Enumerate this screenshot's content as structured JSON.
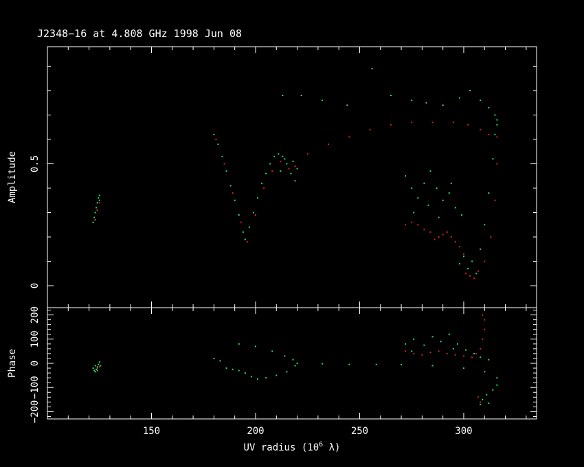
{
  "title": "J2348−16 at 4.808 GHz 1998 Jun 08",
  "chart_data": [
    {
      "type": "scatter",
      "panel": "amplitude",
      "xlabel": "UV radius  (10^6 λ)",
      "ylabel": "Amplitude",
      "xlim": [
        100,
        335
      ],
      "ylim": [
        -0.09,
        0.98
      ],
      "x_ticks": [
        150,
        200,
        250,
        300
      ],
      "y_ticks": [
        0,
        0.5
      ],
      "y_tick_labels": [
        "0",
        "0.5"
      ],
      "colors": {
        "green": "#22e36a",
        "red": "#e02020"
      },
      "series": [
        {
          "color": "green",
          "points": [
            [
              122,
              0.26
            ],
            [
              122.5,
              0.28
            ],
            [
              123,
              0.3
            ],
            [
              123.5,
              0.32
            ],
            [
              124,
              0.34
            ],
            [
              124.5,
              0.36
            ],
            [
              125,
              0.37
            ],
            [
              123,
              0.27
            ],
            [
              124,
              0.31
            ],
            [
              125,
              0.35
            ],
            [
              180,
              0.62
            ],
            [
              182,
              0.58
            ],
            [
              184,
              0.53
            ],
            [
              186,
              0.47
            ],
            [
              188,
              0.41
            ],
            [
              190,
              0.35
            ],
            [
              192,
              0.29
            ],
            [
              194,
              0.22
            ],
            [
              195,
              0.19
            ],
            [
              197,
              0.24
            ],
            [
              199,
              0.3
            ],
            [
              201,
              0.36
            ],
            [
              203,
              0.42
            ],
            [
              205,
              0.46
            ],
            [
              207,
              0.5
            ],
            [
              209,
              0.53
            ],
            [
              211,
              0.54
            ],
            [
              213,
              0.53
            ],
            [
              215,
              0.5
            ],
            [
              217,
              0.46
            ],
            [
              219,
              0.43
            ],
            [
              220,
              0.48
            ],
            [
              218,
              0.51
            ],
            [
              214,
              0.52
            ],
            [
              212,
              0.47
            ],
            [
              213,
              0.78
            ],
            [
              222,
              0.78
            ],
            [
              232,
              0.76
            ],
            [
              244,
              0.74
            ],
            [
              256,
              0.89
            ],
            [
              265,
              0.78
            ],
            [
              275,
              0.76
            ],
            [
              282,
              0.75
            ],
            [
              290,
              0.74
            ],
            [
              298,
              0.77
            ],
            [
              303,
              0.8
            ],
            [
              308,
              0.76
            ],
            [
              312,
              0.73
            ],
            [
              315,
              0.7
            ],
            [
              316,
              0.66
            ],
            [
              272,
              0.45
            ],
            [
              275,
              0.4
            ],
            [
              278,
              0.36
            ],
            [
              281,
              0.42
            ],
            [
              284,
              0.47
            ],
            [
              287,
              0.4
            ],
            [
              290,
              0.35
            ],
            [
              293,
              0.38
            ],
            [
              296,
              0.32
            ],
            [
              299,
              0.29
            ],
            [
              276,
              0.3
            ],
            [
              283,
              0.33
            ],
            [
              288,
              0.28
            ],
            [
              294,
              0.42
            ],
            [
              298,
              0.09
            ],
            [
              300,
              0.12
            ],
            [
              302,
              0.07
            ],
            [
              304,
              0.1
            ],
            [
              306,
              0.05
            ],
            [
              308,
              0.15
            ],
            [
              310,
              0.25
            ],
            [
              312,
              0.38
            ],
            [
              314,
              0.52
            ],
            [
              315,
              0.62
            ],
            [
              316,
              0.68
            ]
          ]
        },
        {
          "color": "red",
          "points": [
            [
              123,
              0.27
            ],
            [
              124,
              0.31
            ],
            [
              125,
              0.34
            ],
            [
              181,
              0.6
            ],
            [
              185,
              0.5
            ],
            [
              189,
              0.38
            ],
            [
              193,
              0.26
            ],
            [
              196,
              0.18
            ],
            [
              200,
              0.29
            ],
            [
              204,
              0.4
            ],
            [
              208,
              0.47
            ],
            [
              212,
              0.51
            ],
            [
              216,
              0.48
            ],
            [
              219,
              0.49
            ],
            [
              225,
              0.54
            ],
            [
              235,
              0.58
            ],
            [
              245,
              0.61
            ],
            [
              255,
              0.64
            ],
            [
              265,
              0.66
            ],
            [
              275,
              0.67
            ],
            [
              285,
              0.67
            ],
            [
              295,
              0.67
            ],
            [
              302,
              0.66
            ],
            [
              308,
              0.64
            ],
            [
              312,
              0.62
            ],
            [
              316,
              0.61
            ],
            [
              272,
              0.25
            ],
            [
              275,
              0.26
            ],
            [
              278,
              0.25
            ],
            [
              281,
              0.23
            ],
            [
              284,
              0.22
            ],
            [
              286,
              0.19
            ],
            [
              288,
              0.2
            ],
            [
              290,
              0.21
            ],
            [
              292,
              0.22
            ],
            [
              294,
              0.2
            ],
            [
              296,
              0.18
            ],
            [
              298,
              0.16
            ],
            [
              300,
              0.13
            ],
            [
              301,
              0.05
            ],
            [
              303,
              0.04
            ],
            [
              305,
              0.03
            ],
            [
              307,
              0.06
            ],
            [
              310,
              0.1
            ],
            [
              313,
              0.2
            ],
            [
              315,
              0.35
            ],
            [
              316,
              0.5
            ]
          ]
        }
      ]
    },
    {
      "type": "scatter",
      "panel": "phase",
      "xlabel": "UV radius  (10^6 λ)",
      "ylabel": "Phase",
      "xlim": [
        100,
        335
      ],
      "ylim": [
        -230,
        230
      ],
      "x_ticks": [
        150,
        200,
        250,
        300
      ],
      "x_tick_labels": [
        "150",
        "200",
        "250",
        "300"
      ],
      "y_ticks": [
        -200,
        -100,
        0,
        100,
        200
      ],
      "y_tick_labels": [
        "−200",
        "−100",
        "0",
        "100",
        "200"
      ],
      "colors": {
        "green": "#22e36a",
        "red": "#e02020"
      },
      "series": [
        {
          "color": "green",
          "points": [
            [
              122,
              -20
            ],
            [
              122.5,
              -30
            ],
            [
              123,
              -35
            ],
            [
              123.5,
              -25
            ],
            [
              124,
              -15
            ],
            [
              124.5,
              -5
            ],
            [
              125,
              5
            ],
            [
              125.5,
              -10
            ],
            [
              124,
              -30
            ],
            [
              123,
              -10
            ],
            [
              180,
              20
            ],
            [
              183,
              10
            ],
            [
              186,
              -20
            ],
            [
              189,
              -25
            ],
            [
              192,
              -30
            ],
            [
              195,
              -40
            ],
            [
              198,
              -55
            ],
            [
              201,
              -65
            ],
            [
              205,
              -60
            ],
            [
              210,
              -50
            ],
            [
              215,
              -35
            ],
            [
              219,
              -10
            ],
            [
              220,
              0
            ],
            [
              218,
              15
            ],
            [
              214,
              30
            ],
            [
              208,
              50
            ],
            [
              200,
              70
            ],
            [
              192,
              80
            ],
            [
              232,
              -2
            ],
            [
              245,
              -5
            ],
            [
              258,
              -5
            ],
            [
              270,
              -5
            ],
            [
              285,
              -10
            ],
            [
              300,
              -20
            ],
            [
              310,
              -35
            ],
            [
              316,
              -60
            ],
            [
              316,
              -90
            ],
            [
              314,
              -110
            ],
            [
              311,
              -130
            ],
            [
              309,
              -150
            ],
            [
              308,
              -170
            ],
            [
              312,
              -165
            ],
            [
              272,
              80
            ],
            [
              276,
              100
            ],
            [
              281,
              75
            ],
            [
              285,
              110
            ],
            [
              289,
              90
            ],
            [
              293,
              120
            ],
            [
              297,
              80
            ],
            [
              301,
              55
            ],
            [
              305,
              40
            ],
            [
              308,
              25
            ],
            [
              312,
              15
            ],
            [
              275,
              50
            ],
            [
              295,
              60
            ]
          ]
        },
        {
          "color": "red",
          "points": [
            [
              124,
              -20
            ],
            [
              125,
              -15
            ],
            [
              272,
              50
            ],
            [
              276,
              40
            ],
            [
              280,
              35
            ],
            [
              284,
              45
            ],
            [
              288,
              50
            ],
            [
              292,
              40
            ],
            [
              296,
              35
            ],
            [
              300,
              30
            ],
            [
              304,
              25
            ],
            [
              306,
              40
            ],
            [
              308,
              60
            ],
            [
              309,
              100
            ],
            [
              310,
              140
            ],
            [
              310,
              180
            ],
            [
              309,
              200
            ],
            [
              308,
              -160
            ],
            [
              307,
              -140
            ]
          ]
        }
      ]
    }
  ]
}
